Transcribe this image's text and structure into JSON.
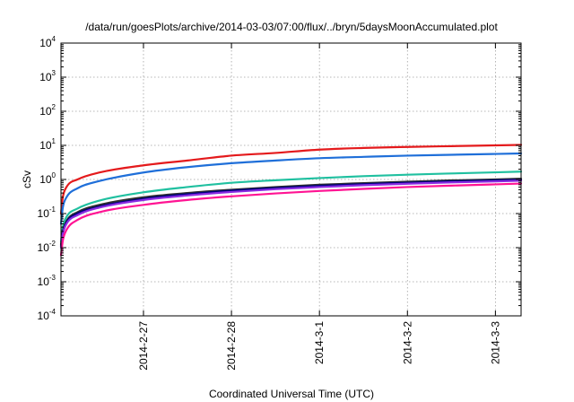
{
  "chart_data": {
    "type": "line",
    "title": "/data/run/goesPlots/archive/2014-03-03/07:00/flux/../bryn/5daysMoonAccumulated.plot",
    "xlabel": "Coordinated Universal Time (UTC)",
    "ylabel": "cSv",
    "yscale": "log",
    "ylim": [
      0.0001,
      10000
    ],
    "y_ticks": [
      {
        "base": "10",
        "exp": "-4"
      },
      {
        "base": "10",
        "exp": "-3"
      },
      {
        "base": "10",
        "exp": "-2"
      },
      {
        "base": "10",
        "exp": "-1"
      },
      {
        "base": "10",
        "exp": "0"
      },
      {
        "base": "10",
        "exp": "1"
      },
      {
        "base": "10",
        "exp": "2"
      },
      {
        "base": "10",
        "exp": "3"
      },
      {
        "base": "10",
        "exp": "4"
      }
    ],
    "xlim": [
      "2014-02-26 01:30",
      "2014-03-03 07:00"
    ],
    "x_ticks": [
      "2014-2-27",
      "2014-2-28",
      "2014-3-1",
      "2014-3-2",
      "2014-3-3"
    ],
    "x_tick_dates": [
      "2014-02-27",
      "2014-02-28",
      "2014-03-01",
      "2014-03-02",
      "2014-03-03"
    ],
    "grid": true,
    "x": [
      "2014-02-26 01:30",
      "2014-02-26 02:00",
      "2014-02-26 03:00",
      "2014-02-26 06:00",
      "2014-02-26 12:00",
      "2014-02-27 00:00",
      "2014-02-27 12:00",
      "2014-02-28 00:00",
      "2014-02-28 12:00",
      "2014-03-01 00:00",
      "2014-03-01 12:00",
      "2014-03-02 00:00",
      "2014-03-02 12:00",
      "2014-03-03 00:00",
      "2014-03-03 07:00"
    ],
    "series": [
      {
        "color": "#e41a1c",
        "values": [
          0.1,
          0.3,
          0.6,
          1.0,
          1.6,
          2.6,
          3.6,
          5.0,
          6.0,
          7.5,
          8.4,
          9.0,
          9.5,
          10.0,
          10.3
        ]
      },
      {
        "color": "#1f6fd9",
        "values": [
          0.05,
          0.15,
          0.3,
          0.55,
          0.9,
          1.6,
          2.3,
          3.0,
          3.6,
          4.2,
          4.6,
          5.0,
          5.3,
          5.6,
          5.8
        ]
      },
      {
        "color": "#20c0a0",
        "values": [
          0.015,
          0.04,
          0.08,
          0.14,
          0.24,
          0.42,
          0.6,
          0.8,
          0.95,
          1.1,
          1.25,
          1.38,
          1.5,
          1.62,
          1.7
        ]
      },
      {
        "color": "#2d2d2d",
        "values": [
          0.012,
          0.03,
          0.06,
          0.11,
          0.18,
          0.3,
          0.4,
          0.5,
          0.6,
          0.7,
          0.78,
          0.86,
          0.94,
          1.0,
          1.05
        ]
      },
      {
        "color": "#000080",
        "values": [
          0.011,
          0.028,
          0.055,
          0.1,
          0.16,
          0.27,
          0.37,
          0.47,
          0.56,
          0.65,
          0.73,
          0.8,
          0.88,
          0.94,
          0.98
        ]
      },
      {
        "color": "#8a2be2",
        "values": [
          0.01,
          0.025,
          0.05,
          0.09,
          0.15,
          0.25,
          0.34,
          0.43,
          0.52,
          0.6,
          0.68,
          0.75,
          0.82,
          0.88,
          0.92
        ]
      },
      {
        "color": "#ff1493",
        "values": [
          0.006,
          0.016,
          0.033,
          0.065,
          0.11,
          0.18,
          0.25,
          0.32,
          0.39,
          0.46,
          0.53,
          0.6,
          0.66,
          0.72,
          0.76
        ]
      }
    ]
  }
}
